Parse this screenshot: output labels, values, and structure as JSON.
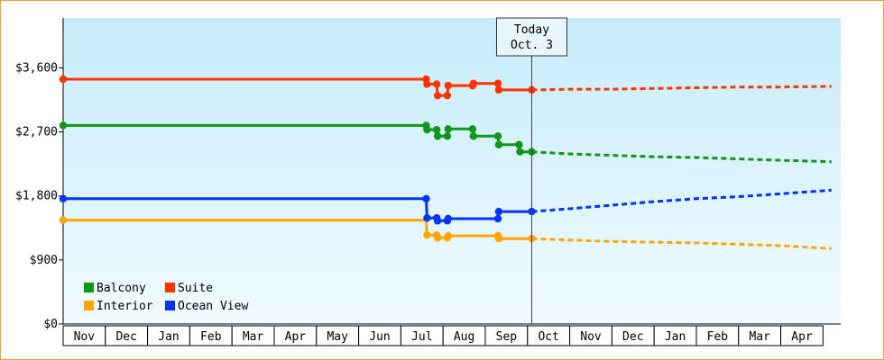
{
  "chart_data": {
    "type": "line",
    "title": "",
    "xlabel": "",
    "ylabel": "",
    "ylim": [
      0,
      4300
    ],
    "y_ticks": [
      "$0",
      "$900",
      "$1,800",
      "$2,700",
      "$3,600"
    ],
    "y_tick_values": [
      0,
      900,
      1800,
      2700,
      3600
    ],
    "months": [
      "Nov",
      "Dec",
      "Jan",
      "Feb",
      "Mar",
      "Apr",
      "May",
      "Jun",
      "Jul",
      "Aug",
      "Sep",
      "Oct",
      "Nov",
      "Dec",
      "Jan",
      "Feb",
      "Mar",
      "Apr"
    ],
    "x_range": [
      0,
      18.2
    ],
    "grid": false,
    "legend_placement": "bottom-left",
    "today": {
      "label": "Today",
      "date": "Oct. 3",
      "x": 11.1
    },
    "series": [
      {
        "name": "Balcony",
        "color": "#109618",
        "points": [
          [
            0,
            2790
          ],
          [
            8.6,
            2790
          ],
          [
            8.62,
            2730
          ],
          [
            8.85,
            2730
          ],
          [
            8.87,
            2640
          ],
          [
            9.1,
            2640
          ],
          [
            9.12,
            2740
          ],
          [
            9.7,
            2740
          ],
          [
            9.72,
            2640
          ],
          [
            10.3,
            2640
          ],
          [
            10.32,
            2520
          ],
          [
            10.8,
            2520
          ],
          [
            10.82,
            2420
          ],
          [
            11.1,
            2420
          ]
        ],
        "markers": [
          [
            0,
            2790
          ],
          [
            8.6,
            2790
          ],
          [
            8.62,
            2730
          ],
          [
            8.85,
            2730
          ],
          [
            8.87,
            2640
          ],
          [
            9.1,
            2640
          ],
          [
            9.12,
            2740
          ],
          [
            9.7,
            2740
          ],
          [
            9.72,
            2640
          ],
          [
            10.3,
            2640
          ],
          [
            10.32,
            2520
          ],
          [
            10.8,
            2520
          ],
          [
            10.82,
            2420
          ],
          [
            11.1,
            2420
          ]
        ],
        "forecast": [
          [
            11.1,
            2420
          ],
          [
            12,
            2390
          ],
          [
            13,
            2370
          ],
          [
            14,
            2350
          ],
          [
            15,
            2340
          ],
          [
            16,
            2320
          ],
          [
            17,
            2300
          ],
          [
            18.2,
            2280
          ]
        ]
      },
      {
        "name": "Suite",
        "color": "#ff3300",
        "points": [
          [
            0,
            3440
          ],
          [
            8.6,
            3440
          ],
          [
            8.62,
            3370
          ],
          [
            8.85,
            3370
          ],
          [
            8.87,
            3210
          ],
          [
            9.1,
            3210
          ],
          [
            9.12,
            3350
          ],
          [
            9.7,
            3350
          ],
          [
            9.72,
            3380
          ],
          [
            10.3,
            3380
          ],
          [
            10.32,
            3290
          ],
          [
            11.1,
            3290
          ]
        ],
        "markers": [
          [
            0,
            3440
          ],
          [
            8.6,
            3440
          ],
          [
            8.62,
            3370
          ],
          [
            8.85,
            3370
          ],
          [
            8.87,
            3210
          ],
          [
            9.1,
            3210
          ],
          [
            9.12,
            3350
          ],
          [
            9.7,
            3350
          ],
          [
            9.72,
            3380
          ],
          [
            10.3,
            3380
          ],
          [
            10.32,
            3290
          ],
          [
            11.1,
            3290
          ]
        ],
        "forecast": [
          [
            11.1,
            3290
          ],
          [
            12,
            3300
          ],
          [
            13,
            3300
          ],
          [
            14,
            3310
          ],
          [
            15,
            3320
          ],
          [
            16,
            3330
          ],
          [
            17,
            3330
          ],
          [
            18.2,
            3340
          ]
        ]
      },
      {
        "name": "Interior",
        "color": "#ffa500",
        "points": [
          [
            0,
            1460
          ],
          [
            8.6,
            1460
          ],
          [
            8.62,
            1250
          ],
          [
            8.85,
            1250
          ],
          [
            8.87,
            1210
          ],
          [
            9.1,
            1210
          ],
          [
            9.12,
            1240
          ],
          [
            10.3,
            1240
          ],
          [
            10.32,
            1200
          ],
          [
            11.1,
            1200
          ]
        ],
        "markers": [
          [
            0,
            1460
          ],
          [
            8.62,
            1250
          ],
          [
            8.85,
            1250
          ],
          [
            8.87,
            1210
          ],
          [
            9.1,
            1210
          ],
          [
            9.12,
            1240
          ],
          [
            10.3,
            1240
          ],
          [
            10.32,
            1200
          ],
          [
            11.1,
            1200
          ]
        ],
        "forecast": [
          [
            11.1,
            1200
          ],
          [
            12,
            1180
          ],
          [
            13,
            1160
          ],
          [
            14,
            1150
          ],
          [
            15,
            1140
          ],
          [
            16,
            1120
          ],
          [
            17,
            1100
          ],
          [
            18.2,
            1060
          ]
        ]
      },
      {
        "name": "Ocean View",
        "color": "#0033ff",
        "points": [
          [
            0,
            1760
          ],
          [
            8.6,
            1760
          ],
          [
            8.62,
            1490
          ],
          [
            8.85,
            1490
          ],
          [
            8.87,
            1450
          ],
          [
            9.1,
            1450
          ],
          [
            9.12,
            1480
          ],
          [
            10.3,
            1480
          ],
          [
            10.32,
            1580
          ],
          [
            11.1,
            1580
          ]
        ],
        "markers": [
          [
            0,
            1760
          ],
          [
            8.6,
            1760
          ],
          [
            8.62,
            1490
          ],
          [
            8.85,
            1490
          ],
          [
            8.87,
            1450
          ],
          [
            9.1,
            1450
          ],
          [
            9.12,
            1480
          ],
          [
            10.3,
            1480
          ],
          [
            10.32,
            1580
          ],
          [
            11.1,
            1580
          ]
        ],
        "forecast": [
          [
            11.1,
            1580
          ],
          [
            12,
            1620
          ],
          [
            13,
            1670
          ],
          [
            14,
            1720
          ],
          [
            15,
            1760
          ],
          [
            16,
            1790
          ],
          [
            17,
            1830
          ],
          [
            18.2,
            1880
          ]
        ]
      }
    ]
  }
}
